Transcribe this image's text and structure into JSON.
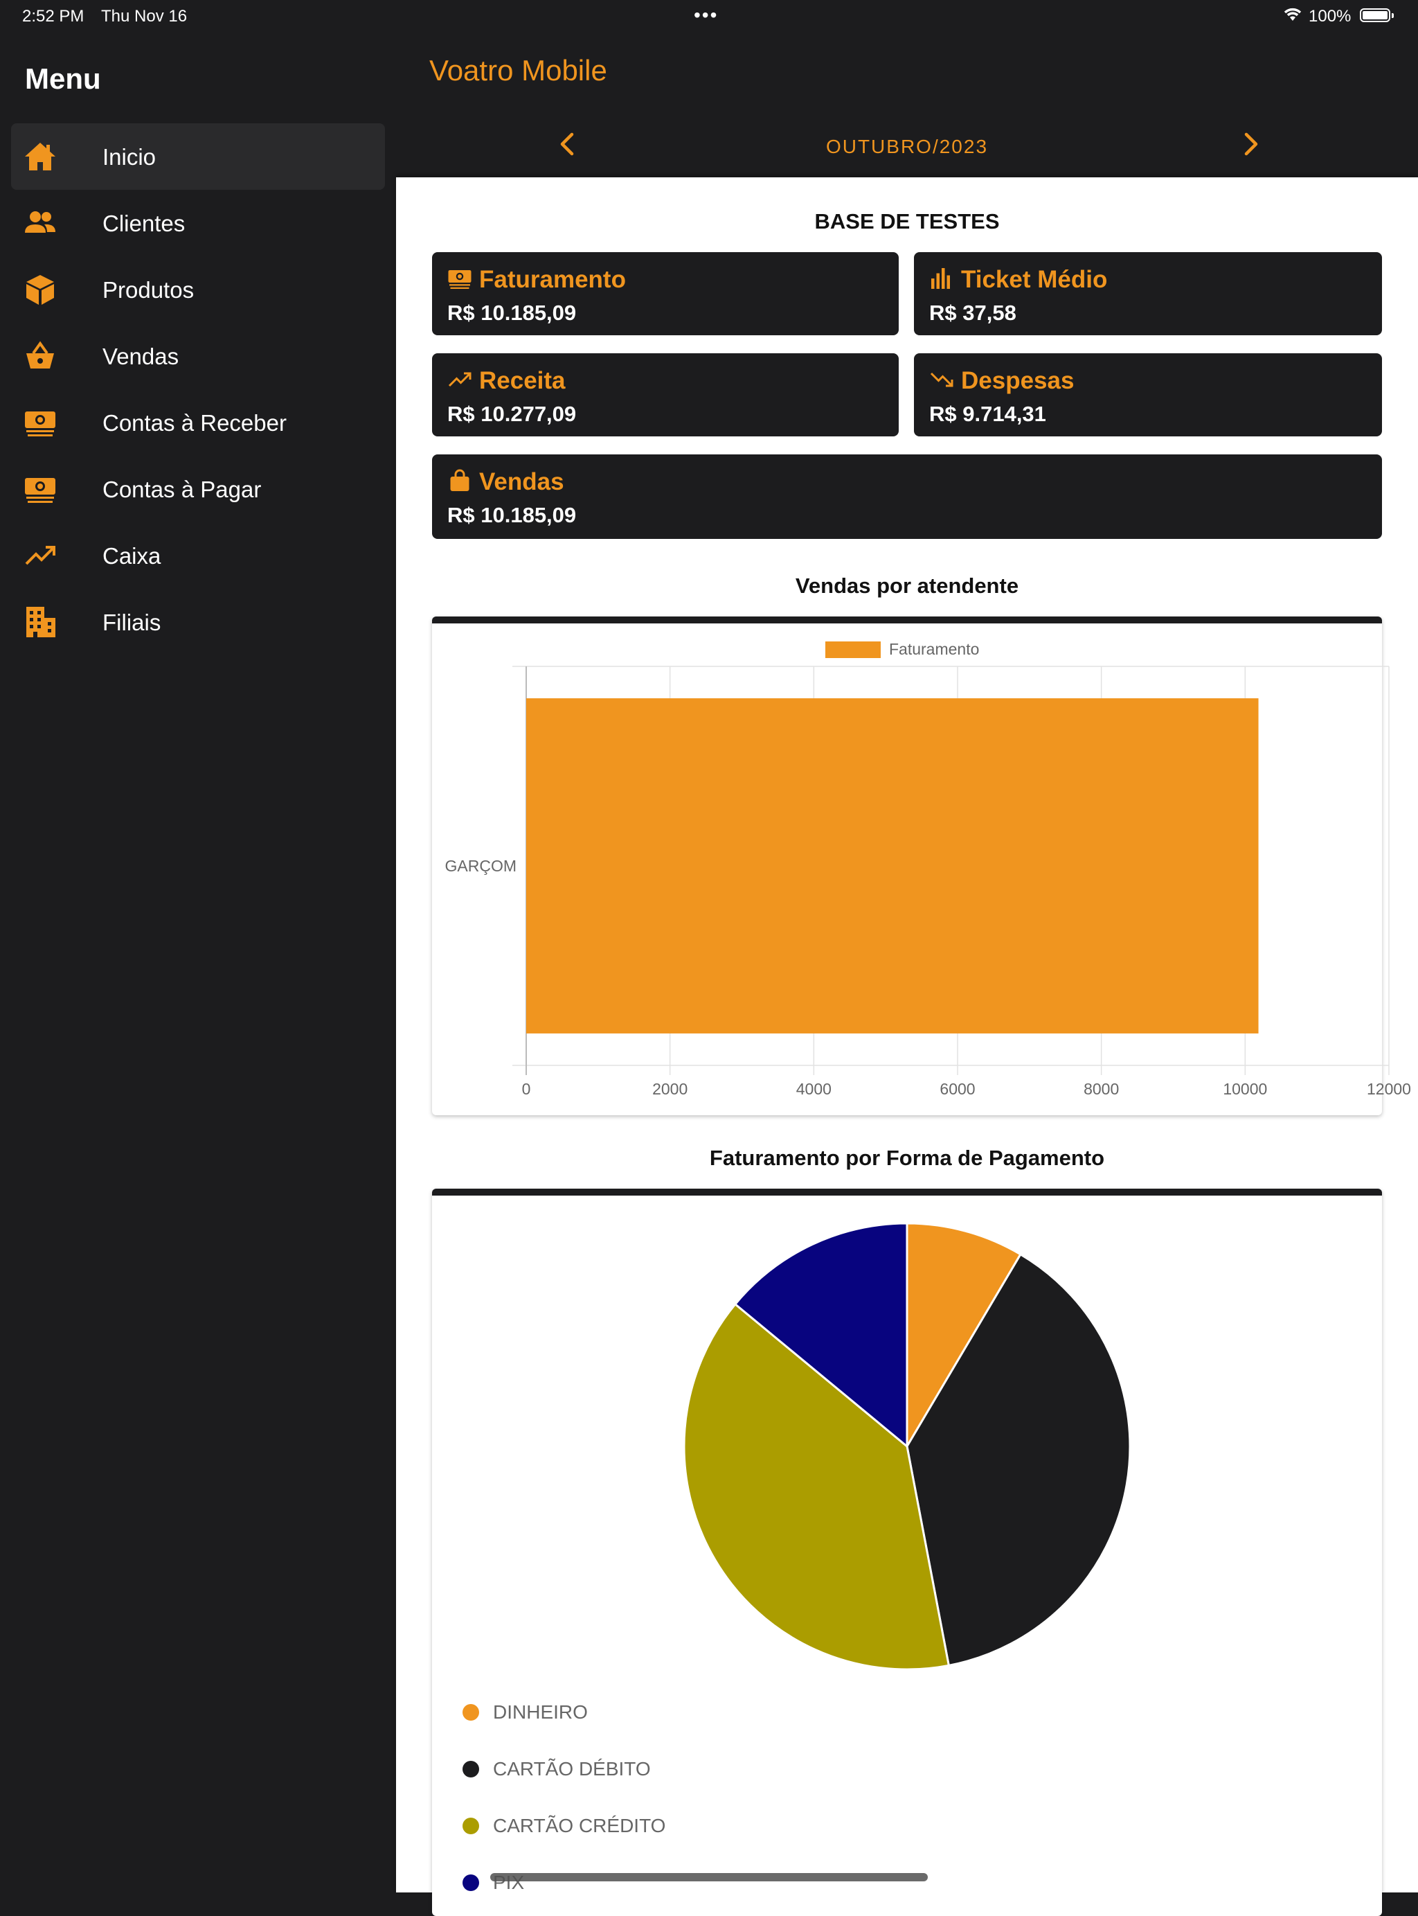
{
  "status_bar": {
    "time": "2:52 PM",
    "date": "Thu Nov 16",
    "battery": "100%"
  },
  "sidebar": {
    "title": "Menu",
    "items": [
      {
        "label": "Inicio",
        "icon": "home-icon",
        "active": true
      },
      {
        "label": "Clientes",
        "icon": "users-icon"
      },
      {
        "label": "Produtos",
        "icon": "box-icon"
      },
      {
        "label": "Vendas",
        "icon": "basket-icon"
      },
      {
        "label": "Contas à Receber",
        "icon": "money-icon"
      },
      {
        "label": "Contas à Pagar",
        "icon": "money-icon"
      },
      {
        "label": "Caixa",
        "icon": "trend-up-icon"
      },
      {
        "label": "Filiais",
        "icon": "building-icon"
      }
    ]
  },
  "header": {
    "title": "Voatro Mobile",
    "period": "OUTUBRO/2023"
  },
  "dashboard": {
    "company": "BASE DE TESTES",
    "cards": [
      {
        "title": "Faturamento",
        "value": "R$ 10.185,09",
        "icon": "money-icon"
      },
      {
        "title": "Ticket Médio",
        "value": "R$ 37,58",
        "icon": "bar-chart-icon"
      },
      {
        "title": "Receita",
        "value": "R$ 10.277,09",
        "icon": "trend-up-icon"
      },
      {
        "title": "Despesas",
        "value": "R$ 9.714,31",
        "icon": "trend-down-icon"
      },
      {
        "title": "Vendas",
        "value": "R$ 10.185,09",
        "icon": "bag-icon"
      }
    ]
  },
  "accent_color": "#f0951f",
  "dark_color": "#1c1c1e",
  "chart_data": [
    {
      "type": "bar",
      "orientation": "horizontal",
      "title": "Vendas por atendente",
      "categories": [
        "GARÇOM"
      ],
      "series": [
        {
          "name": "Faturamento",
          "values": [
            10185.09
          ],
          "color": "#f0951f"
        }
      ],
      "xlim": [
        0,
        12000
      ],
      "xticks": [
        "0",
        "2000",
        "4000",
        "6000",
        "8000",
        "10000",
        "12000"
      ],
      "legend": "top",
      "grid": true
    },
    {
      "type": "pie",
      "title": "Faturamento por Forma de Pagamento",
      "slices": [
        {
          "label": "DINHEIRO",
          "value": 8.5,
          "color": "#f0951f"
        },
        {
          "label": "CARTÃO DÉBITO",
          "value": 38.5,
          "color": "#1c1c1e"
        },
        {
          "label": "CARTÃO CRÉDITO",
          "value": 39.0,
          "color": "#ab9d00"
        },
        {
          "label": "PIX",
          "value": 14.0,
          "color": "#08047f"
        }
      ],
      "legend": "bottom"
    }
  ]
}
